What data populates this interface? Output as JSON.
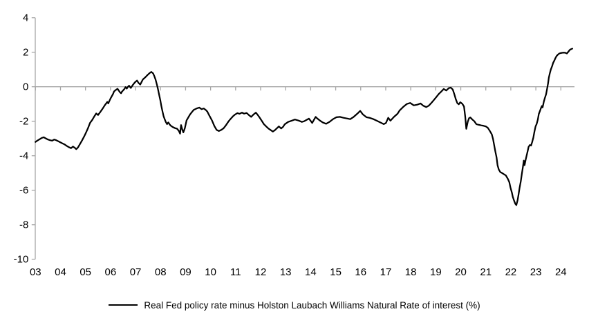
{
  "chart_data": {
    "type": "line",
    "title": "",
    "xlabel": "",
    "ylabel": "",
    "legend_label": "Real Fed policy rate minus Holston Laubach Williams Natural Rate of interest (%)",
    "legend_position": "bottom-center",
    "line_color": "#000000",
    "axis_color": "#a6a6a6",
    "text_color": "#000000",
    "grid": "zero-line-only",
    "ylim": [
      -10,
      4
    ],
    "xlim_years": [
      2003,
      2024.6
    ],
    "y_ticks": [
      "4",
      "2",
      "0",
      "-2",
      "-4",
      "-6",
      "-8",
      "-10"
    ],
    "y_tick_values": [
      4,
      2,
      0,
      -2,
      -4,
      -6,
      -8,
      -10
    ],
    "x_ticks": [
      "03",
      "04",
      "05",
      "06",
      "07",
      "08",
      "09",
      "10",
      "11",
      "12",
      "13",
      "14",
      "15",
      "16",
      "17",
      "18",
      "19",
      "20",
      "21",
      "22",
      "23",
      "24"
    ],
    "x_tick_years": [
      2003,
      2004,
      2005,
      2006,
      2007,
      2008,
      2009,
      2010,
      2011,
      2012,
      2013,
      2014,
      2015,
      2016,
      2017,
      2018,
      2019,
      2020,
      2021,
      2022,
      2023,
      2024
    ],
    "series": [
      {
        "name": "Real Fed policy rate minus Holston Laubach Williams Natural Rate of interest (%)",
        "points": [
          [
            2003.0,
            -3.2
          ],
          [
            2003.08,
            -3.12
          ],
          [
            2003.17,
            -3.04
          ],
          [
            2003.25,
            -2.97
          ],
          [
            2003.33,
            -2.93
          ],
          [
            2003.42,
            -3.0
          ],
          [
            2003.5,
            -3.06
          ],
          [
            2003.58,
            -3.1
          ],
          [
            2003.67,
            -3.13
          ],
          [
            2003.75,
            -3.06
          ],
          [
            2003.83,
            -3.1
          ],
          [
            2003.92,
            -3.17
          ],
          [
            2004.0,
            -3.23
          ],
          [
            2004.08,
            -3.29
          ],
          [
            2004.17,
            -3.35
          ],
          [
            2004.25,
            -3.43
          ],
          [
            2004.33,
            -3.5
          ],
          [
            2004.42,
            -3.56
          ],
          [
            2004.5,
            -3.47
          ],
          [
            2004.58,
            -3.55
          ],
          [
            2004.63,
            -3.62
          ],
          [
            2004.7,
            -3.52
          ],
          [
            2004.78,
            -3.32
          ],
          [
            2004.86,
            -3.12
          ],
          [
            2004.94,
            -2.9
          ],
          [
            2005.02,
            -2.66
          ],
          [
            2005.1,
            -2.4
          ],
          [
            2005.18,
            -2.1
          ],
          [
            2005.27,
            -1.92
          ],
          [
            2005.36,
            -1.7
          ],
          [
            2005.43,
            -1.55
          ],
          [
            2005.5,
            -1.64
          ],
          [
            2005.59,
            -1.47
          ],
          [
            2005.68,
            -1.28
          ],
          [
            2005.77,
            -1.08
          ],
          [
            2005.87,
            -0.88
          ],
          [
            2005.91,
            -0.97
          ],
          [
            2006.0,
            -0.68
          ],
          [
            2006.1,
            -0.42
          ],
          [
            2006.14,
            -0.28
          ],
          [
            2006.19,
            -0.21
          ],
          [
            2006.28,
            -0.12
          ],
          [
            2006.37,
            -0.31
          ],
          [
            2006.42,
            -0.38
          ],
          [
            2006.46,
            -0.28
          ],
          [
            2006.56,
            -0.12
          ],
          [
            2006.6,
            -0.02
          ],
          [
            2006.65,
            -0.11
          ],
          [
            2006.69,
            -0.02
          ],
          [
            2006.74,
            0.06
          ],
          [
            2006.81,
            -0.07
          ],
          [
            2006.88,
            0.08
          ],
          [
            2006.97,
            0.25
          ],
          [
            2007.06,
            0.36
          ],
          [
            2007.12,
            0.22
          ],
          [
            2007.19,
            0.13
          ],
          [
            2007.29,
            0.42
          ],
          [
            2007.39,
            0.55
          ],
          [
            2007.48,
            0.68
          ],
          [
            2007.57,
            0.8
          ],
          [
            2007.63,
            0.86
          ],
          [
            2007.7,
            0.78
          ],
          [
            2007.75,
            0.62
          ],
          [
            2007.8,
            0.42
          ],
          [
            2007.85,
            0.15
          ],
          [
            2007.89,
            -0.1
          ],
          [
            2007.94,
            -0.45
          ],
          [
            2007.99,
            -0.78
          ],
          [
            2008.03,
            -1.1
          ],
          [
            2008.08,
            -1.44
          ],
          [
            2008.12,
            -1.7
          ],
          [
            2008.17,
            -1.9
          ],
          [
            2008.21,
            -2.04
          ],
          [
            2008.26,
            -2.17
          ],
          [
            2008.31,
            -2.07
          ],
          [
            2008.36,
            -2.18
          ],
          [
            2008.4,
            -2.25
          ],
          [
            2008.49,
            -2.34
          ],
          [
            2008.58,
            -2.4
          ],
          [
            2008.66,
            -2.43
          ],
          [
            2008.73,
            -2.56
          ],
          [
            2008.78,
            -2.72
          ],
          [
            2008.82,
            -2.22
          ],
          [
            2008.87,
            -2.48
          ],
          [
            2008.91,
            -2.65
          ],
          [
            2008.97,
            -2.4
          ],
          [
            2009.04,
            -1.95
          ],
          [
            2009.18,
            -1.6
          ],
          [
            2009.32,
            -1.35
          ],
          [
            2009.46,
            -1.25
          ],
          [
            2009.55,
            -1.21
          ],
          [
            2009.64,
            -1.3
          ],
          [
            2009.73,
            -1.26
          ],
          [
            2009.82,
            -1.36
          ],
          [
            2009.87,
            -1.44
          ],
          [
            2009.96,
            -1.7
          ],
          [
            2010.06,
            -1.97
          ],
          [
            2010.15,
            -2.28
          ],
          [
            2010.24,
            -2.5
          ],
          [
            2010.33,
            -2.57
          ],
          [
            2010.43,
            -2.5
          ],
          [
            2010.52,
            -2.41
          ],
          [
            2010.61,
            -2.24
          ],
          [
            2010.7,
            -2.04
          ],
          [
            2010.79,
            -1.88
          ],
          [
            2010.89,
            -1.72
          ],
          [
            2010.98,
            -1.61
          ],
          [
            2011.07,
            -1.53
          ],
          [
            2011.16,
            -1.57
          ],
          [
            2011.25,
            -1.5
          ],
          [
            2011.34,
            -1.56
          ],
          [
            2011.44,
            -1.52
          ],
          [
            2011.53,
            -1.64
          ],
          [
            2011.62,
            -1.75
          ],
          [
            2011.72,
            -1.6
          ],
          [
            2011.81,
            -1.5
          ],
          [
            2011.88,
            -1.63
          ],
          [
            2011.95,
            -1.77
          ],
          [
            2012.04,
            -1.97
          ],
          [
            2012.13,
            -2.17
          ],
          [
            2012.22,
            -2.3
          ],
          [
            2012.31,
            -2.42
          ],
          [
            2012.41,
            -2.52
          ],
          [
            2012.49,
            -2.6
          ],
          [
            2012.57,
            -2.52
          ],
          [
            2012.64,
            -2.42
          ],
          [
            2012.73,
            -2.3
          ],
          [
            2012.82,
            -2.42
          ],
          [
            2012.9,
            -2.32
          ],
          [
            2012.96,
            -2.18
          ],
          [
            2013.1,
            -2.04
          ],
          [
            2013.24,
            -1.97
          ],
          [
            2013.37,
            -1.9
          ],
          [
            2013.51,
            -1.96
          ],
          [
            2013.65,
            -2.04
          ],
          [
            2013.74,
            -2.0
          ],
          [
            2013.83,
            -1.93
          ],
          [
            2013.93,
            -1.85
          ],
          [
            2014.0,
            -1.98
          ],
          [
            2014.06,
            -2.1
          ],
          [
            2014.13,
            -1.92
          ],
          [
            2014.2,
            -1.75
          ],
          [
            2014.27,
            -1.85
          ],
          [
            2014.34,
            -1.93
          ],
          [
            2014.41,
            -2.0
          ],
          [
            2014.48,
            -2.07
          ],
          [
            2014.62,
            -2.15
          ],
          [
            2014.75,
            -2.04
          ],
          [
            2014.89,
            -1.88
          ],
          [
            2015.03,
            -1.77
          ],
          [
            2015.17,
            -1.75
          ],
          [
            2015.31,
            -1.8
          ],
          [
            2015.45,
            -1.84
          ],
          [
            2015.58,
            -1.88
          ],
          [
            2015.72,
            -1.75
          ],
          [
            2015.86,
            -1.57
          ],
          [
            2015.98,
            -1.4
          ],
          [
            2016.09,
            -1.61
          ],
          [
            2016.23,
            -1.77
          ],
          [
            2016.37,
            -1.81
          ],
          [
            2016.51,
            -1.88
          ],
          [
            2016.64,
            -1.97
          ],
          [
            2016.78,
            -2.07
          ],
          [
            2016.92,
            -2.17
          ],
          [
            2017.01,
            -2.1
          ],
          [
            2017.1,
            -1.8
          ],
          [
            2017.19,
            -1.97
          ],
          [
            2017.33,
            -1.75
          ],
          [
            2017.47,
            -1.57
          ],
          [
            2017.56,
            -1.37
          ],
          [
            2017.7,
            -1.17
          ],
          [
            2017.84,
            -1.0
          ],
          [
            2017.98,
            -0.94
          ],
          [
            2018.12,
            -1.08
          ],
          [
            2018.26,
            -1.04
          ],
          [
            2018.39,
            -0.97
          ],
          [
            2018.5,
            -1.1
          ],
          [
            2018.62,
            -1.18
          ],
          [
            2018.72,
            -1.1
          ],
          [
            2018.82,
            -0.95
          ],
          [
            2018.92,
            -0.78
          ],
          [
            2019.02,
            -0.6
          ],
          [
            2019.12,
            -0.42
          ],
          [
            2019.22,
            -0.28
          ],
          [
            2019.32,
            -0.13
          ],
          [
            2019.42,
            -0.22
          ],
          [
            2019.52,
            -0.08
          ],
          [
            2019.6,
            -0.05
          ],
          [
            2019.68,
            -0.16
          ],
          [
            2019.74,
            -0.42
          ],
          [
            2019.8,
            -0.72
          ],
          [
            2019.86,
            -0.95
          ],
          [
            2019.92,
            -1.02
          ],
          [
            2019.98,
            -0.9
          ],
          [
            2020.06,
            -0.99
          ],
          [
            2020.13,
            -1.15
          ],
          [
            2020.18,
            -1.75
          ],
          [
            2020.22,
            -2.44
          ],
          [
            2020.28,
            -2.02
          ],
          [
            2020.33,
            -1.82
          ],
          [
            2020.38,
            -1.78
          ],
          [
            2020.46,
            -1.9
          ],
          [
            2020.54,
            -2.0
          ],
          [
            2020.62,
            -2.17
          ],
          [
            2020.72,
            -2.21
          ],
          [
            2020.82,
            -2.24
          ],
          [
            2020.92,
            -2.27
          ],
          [
            2021.0,
            -2.3
          ],
          [
            2021.08,
            -2.38
          ],
          [
            2021.16,
            -2.56
          ],
          [
            2021.24,
            -2.76
          ],
          [
            2021.29,
            -3.03
          ],
          [
            2021.33,
            -3.36
          ],
          [
            2021.38,
            -3.75
          ],
          [
            2021.43,
            -4.1
          ],
          [
            2021.47,
            -4.55
          ],
          [
            2021.52,
            -4.8
          ],
          [
            2021.58,
            -4.95
          ],
          [
            2021.65,
            -5.0
          ],
          [
            2021.72,
            -5.07
          ],
          [
            2021.8,
            -5.14
          ],
          [
            2021.88,
            -5.34
          ],
          [
            2021.94,
            -5.53
          ],
          [
            2021.99,
            -5.86
          ],
          [
            2022.04,
            -6.13
          ],
          [
            2022.08,
            -6.39
          ],
          [
            2022.13,
            -6.6
          ],
          [
            2022.18,
            -6.79
          ],
          [
            2022.22,
            -6.86
          ],
          [
            2022.27,
            -6.58
          ],
          [
            2022.31,
            -6.25
          ],
          [
            2022.35,
            -5.86
          ],
          [
            2022.4,
            -5.47
          ],
          [
            2022.44,
            -5.07
          ],
          [
            2022.48,
            -4.68
          ],
          [
            2022.52,
            -4.28
          ],
          [
            2022.55,
            -4.55
          ],
          [
            2022.59,
            -4.25
          ],
          [
            2022.63,
            -4.0
          ],
          [
            2022.67,
            -3.75
          ],
          [
            2022.71,
            -3.49
          ],
          [
            2022.76,
            -3.38
          ],
          [
            2022.81,
            -3.41
          ],
          [
            2022.85,
            -3.22
          ],
          [
            2022.9,
            -2.95
          ],
          [
            2022.94,
            -2.64
          ],
          [
            2022.99,
            -2.3
          ],
          [
            2023.03,
            -2.17
          ],
          [
            2023.08,
            -1.9
          ],
          [
            2023.12,
            -1.58
          ],
          [
            2023.17,
            -1.38
          ],
          [
            2023.2,
            -1.26
          ],
          [
            2023.24,
            -1.12
          ],
          [
            2023.27,
            -1.2
          ],
          [
            2023.32,
            -0.86
          ],
          [
            2023.36,
            -0.66
          ],
          [
            2023.41,
            -0.44
          ],
          [
            2023.45,
            -0.12
          ],
          [
            2023.49,
            0.2
          ],
          [
            2023.52,
            0.53
          ],
          [
            2023.56,
            0.79
          ],
          [
            2023.6,
            1.0
          ],
          [
            2023.65,
            1.19
          ],
          [
            2023.69,
            1.38
          ],
          [
            2023.74,
            1.52
          ],
          [
            2023.78,
            1.65
          ],
          [
            2023.83,
            1.78
          ],
          [
            2023.88,
            1.86
          ],
          [
            2023.93,
            1.92
          ],
          [
            2023.98,
            1.95
          ],
          [
            2024.05,
            1.97
          ],
          [
            2024.12,
            1.98
          ],
          [
            2024.18,
            1.97
          ],
          [
            2024.24,
            1.93
          ],
          [
            2024.3,
            2.03
          ],
          [
            2024.36,
            2.14
          ],
          [
            2024.42,
            2.19
          ],
          [
            2024.46,
            2.21
          ]
        ]
      }
    ]
  }
}
